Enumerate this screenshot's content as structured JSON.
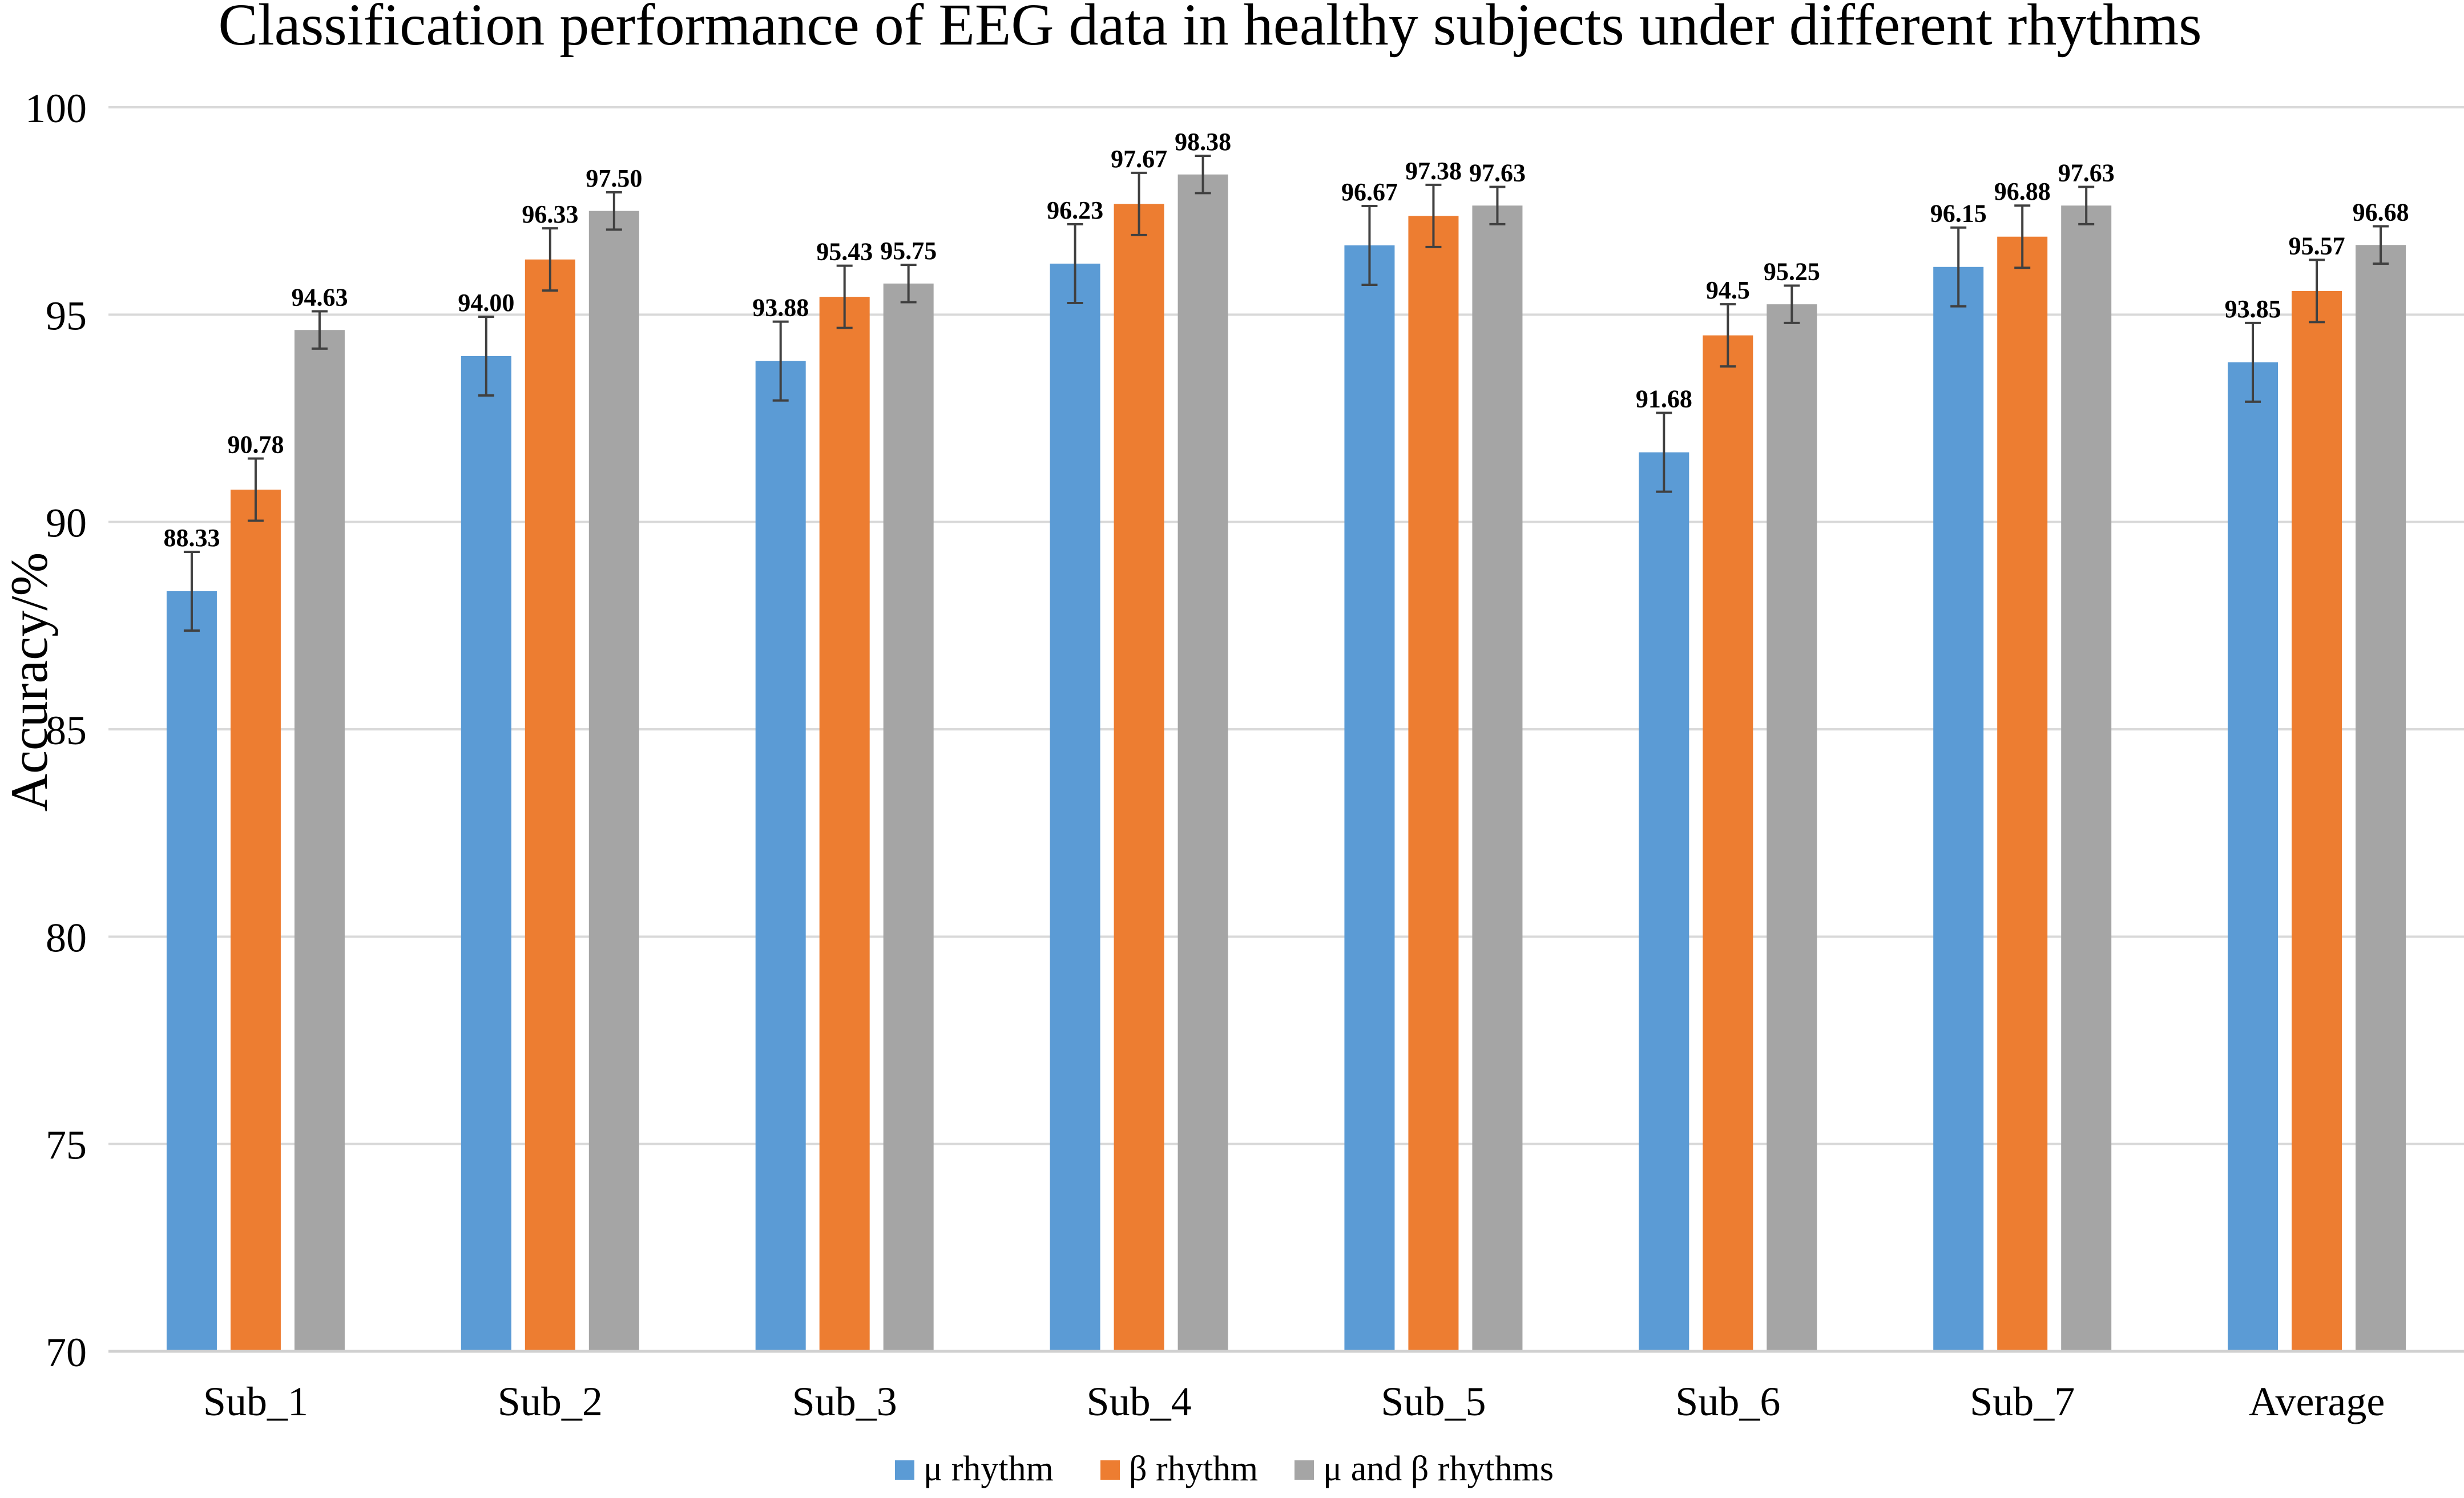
{
  "chart_data": {
    "type": "bar",
    "title": "Classification performance of EEG data in healthy subjects under different rhythms",
    "xlabel": "",
    "ylabel": "Accuracy/%",
    "ylim": [
      70,
      100
    ],
    "yticks": [
      70,
      75,
      80,
      85,
      90,
      95,
      100
    ],
    "grid": true,
    "legend_position": "bottom",
    "categories": [
      "Sub_1",
      "Sub_2",
      "Sub_3",
      "Sub_4",
      "Sub_5",
      "Sub_6",
      "Sub_7",
      "Average"
    ],
    "series": [
      {
        "name": "μ rhythm",
        "color": "#5B9BD5",
        "values": [
          88.33,
          94.0,
          93.88,
          96.23,
          96.67,
          91.68,
          96.15,
          93.85
        ],
        "labels": [
          "88.33",
          "94.00",
          "93.88",
          "96.23",
          "96.67",
          "91.68",
          "96.15",
          "93.85"
        ],
        "errors": [
          0.95,
          0.95,
          0.95,
          0.95,
          0.95,
          0.95,
          0.95,
          0.95
        ]
      },
      {
        "name": "β rhythm",
        "color": "#ED7D31",
        "values": [
          90.78,
          96.33,
          95.43,
          97.67,
          97.38,
          94.5,
          96.88,
          95.57
        ],
        "labels": [
          "90.78",
          "96.33",
          "95.43",
          "97.67",
          "97.38",
          "94.5",
          "96.88",
          "95.57"
        ],
        "errors": [
          0.75,
          0.75,
          0.75,
          0.75,
          0.75,
          0.75,
          0.75,
          0.75
        ]
      },
      {
        "name": "μ and β rhythms",
        "color": "#A5A5A5",
        "values": [
          94.63,
          97.5,
          95.75,
          98.38,
          97.63,
          95.25,
          97.63,
          96.68
        ],
        "labels": [
          "94.63",
          "97.50",
          "95.75",
          "98.38",
          "97.63",
          "95.25",
          "97.63",
          "96.68"
        ],
        "errors": [
          0.45,
          0.45,
          0.45,
          0.45,
          0.45,
          0.45,
          0.45,
          0.45
        ]
      }
    ]
  }
}
